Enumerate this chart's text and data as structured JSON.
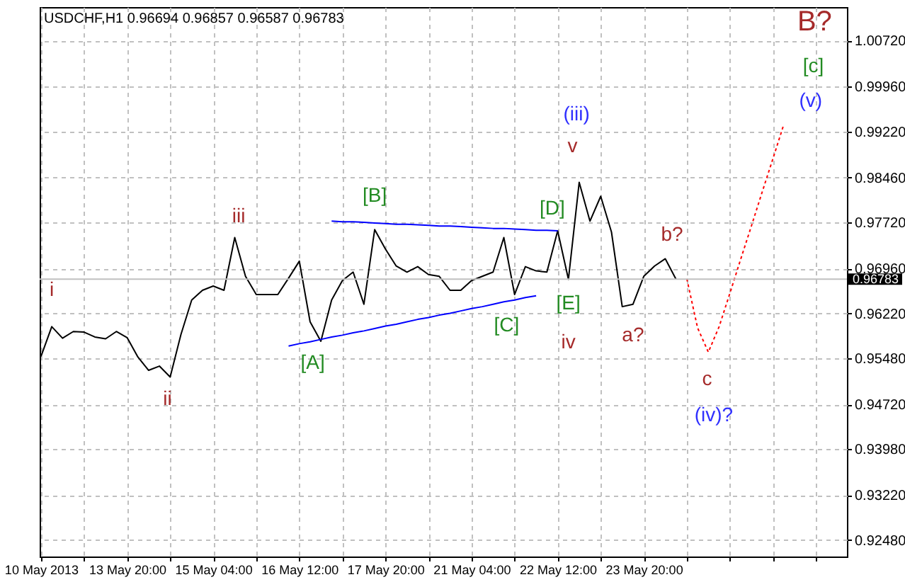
{
  "chart_data": {
    "type": "line",
    "title": "USDCHF,H1 0.96694 0.96857 0.96587 0.96783",
    "categories": [
      "10 May 2013",
      null,
      null,
      null,
      null,
      null,
      null,
      null,
      "13 May 20:00",
      null,
      null,
      null,
      null,
      null,
      null,
      null,
      "15 May 04:00",
      null,
      null,
      null,
      null,
      null,
      null,
      null,
      "16 May 12:00",
      null,
      null,
      null,
      null,
      null,
      null,
      null,
      "17 May 20:00",
      null,
      null,
      null,
      null,
      null,
      null,
      null,
      "21 May 04:00",
      null,
      null,
      null,
      null,
      null,
      null,
      null,
      "22 May 12:00",
      null,
      null,
      null,
      null,
      null,
      null,
      null,
      "23 May 20:00",
      null,
      null,
      null,
      null,
      null,
      null,
      null,
      null,
      null,
      null,
      null,
      null,
      null,
      null,
      null,
      null,
      null,
      null
    ],
    "ylim": [
      0.9221,
      1.0127
    ],
    "yticks": [
      {
        "value": 0.9248,
        "label": "0.92480"
      },
      {
        "value": 0.9322,
        "label": "0.93220"
      },
      {
        "value": 0.9398,
        "label": "0.93980"
      },
      {
        "value": 0.9472,
        "label": "0.94720"
      },
      {
        "value": 0.9548,
        "label": "0.95480"
      },
      {
        "value": 0.9622,
        "label": "0.96220"
      },
      {
        "value": 0.9696,
        "label": "0.96960"
      },
      {
        "value": 0.9772,
        "label": "0.97720"
      },
      {
        "value": 0.9846,
        "label": "0.98460"
      },
      {
        "value": 0.9922,
        "label": "0.99220"
      },
      {
        "value": 0.9996,
        "label": "0.99960"
      },
      {
        "value": 1.0072,
        "label": "1.00720"
      }
    ],
    "grid": true,
    "series": [
      {
        "color": "#000000",
        "line_style": "solid",
        "values": [
          0.9551,
          0.96,
          0.9581,
          0.9592,
          0.9591,
          0.9583,
          0.958,
          0.9592,
          0.9582,
          0.955,
          0.9528,
          0.9535,
          0.9517,
          0.9587,
          0.9644,
          0.966,
          0.9667,
          0.966,
          0.9747,
          0.9683,
          0.9653,
          0.9653,
          0.9653,
          0.968,
          0.9708,
          0.9608,
          0.9576,
          0.9644,
          0.9676,
          0.969,
          0.9637,
          0.976,
          0.9728,
          0.97,
          0.969,
          0.9699,
          0.9686,
          0.9683,
          0.966,
          0.966,
          0.9676,
          0.9683,
          0.969,
          0.9747,
          0.9653,
          0.9699,
          0.9692,
          0.969,
          0.9758,
          0.9678,
          0.9838,
          0.9774,
          0.9815,
          0.9756,
          0.9633,
          0.9637,
          0.9683,
          0.97,
          0.9712,
          0.9678,
          null,
          null,
          null,
          null,
          null,
          null,
          null,
          null,
          null,
          null,
          null,
          null,
          null,
          null,
          null
        ]
      },
      {
        "color": "#0000ff",
        "line_style": "solid",
        "values": [
          null,
          null,
          null,
          null,
          null,
          null,
          null,
          null,
          null,
          null,
          null,
          null,
          null,
          null,
          null,
          null,
          null,
          null,
          null,
          null,
          null,
          null,
          null,
          null,
          null,
          null,
          null,
          0.9774,
          0.9773,
          0.9773,
          0.9772,
          0.9771,
          0.977,
          0.9769,
          0.9769,
          0.9768,
          0.9767,
          0.9766,
          0.9766,
          0.9765,
          0.9764,
          0.9763,
          0.9762,
          0.9762,
          0.9761,
          0.976,
          0.9759,
          0.9759,
          0.9758,
          null,
          null,
          null,
          null,
          null,
          null,
          null,
          null,
          null,
          null,
          null,
          null,
          null,
          null,
          null,
          null,
          null,
          null,
          null,
          null,
          null,
          null,
          null,
          null,
          null,
          null
        ]
      },
      {
        "color": "#0000ff",
        "line_style": "solid",
        "values": [
          null,
          null,
          null,
          null,
          null,
          null,
          null,
          null,
          null,
          null,
          null,
          null,
          null,
          null,
          null,
          null,
          null,
          null,
          null,
          null,
          null,
          null,
          null,
          0.9568,
          0.9572,
          0.9575,
          0.9579,
          0.9583,
          0.9586,
          0.959,
          0.9593,
          0.9597,
          0.9601,
          0.9604,
          0.9608,
          0.9612,
          0.9615,
          0.9619,
          0.9622,
          0.9626,
          0.963,
          0.9633,
          0.9637,
          0.9641,
          0.9644,
          0.9648,
          0.9651,
          null,
          null,
          null,
          null,
          null,
          null,
          null,
          null,
          null,
          null,
          null,
          null,
          null,
          null,
          null,
          null,
          null,
          null,
          null,
          null,
          null,
          null,
          null,
          null,
          null,
          null,
          null,
          null
        ]
      },
      {
        "color": "#ff0000",
        "line_style": "dotted",
        "values": [
          null,
          null,
          null,
          null,
          null,
          null,
          null,
          null,
          null,
          null,
          null,
          null,
          null,
          null,
          null,
          null,
          null,
          null,
          null,
          null,
          null,
          null,
          null,
          null,
          null,
          null,
          null,
          null,
          null,
          null,
          null,
          null,
          null,
          null,
          null,
          null,
          null,
          null,
          null,
          null,
          null,
          null,
          null,
          null,
          null,
          null,
          null,
          null,
          null,
          null,
          null,
          null,
          null,
          null,
          null,
          null,
          null,
          null,
          null,
          null,
          0.9679,
          0.9598,
          0.9558,
          0.96,
          0.9655,
          0.9711,
          0.9766,
          0.9822,
          0.9877,
          0.9933,
          null,
          null,
          null,
          null,
          null
        ]
      }
    ],
    "ref_lines": [
      {
        "axis": "y",
        "value": 0.96783,
        "label": "0.96783",
        "color": "#c0c0c0"
      }
    ],
    "annotations": [
      "i",
      "ii",
      "iii",
      "[A]",
      "[B]",
      "[C]",
      "[D]",
      "[E]",
      "iv",
      "v",
      "(iii)",
      "a?",
      "b?",
      "c",
      "(iv)?",
      "B?",
      "[c]",
      "(v)"
    ]
  }
}
